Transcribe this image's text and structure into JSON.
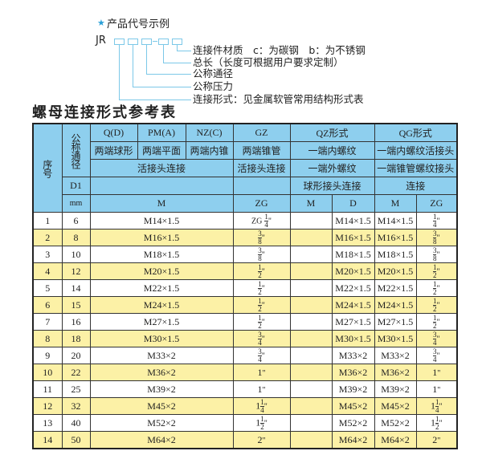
{
  "example": {
    "star_icon": "star-icon",
    "title": "产品代号示例",
    "prefix": "JR",
    "labels": [
      "连接件材质　c：为碳钢　b：为不锈钢",
      "总长（长度可根据用户要求定制）",
      "公称通径",
      "公称压力",
      "连接形式：见金属软管常用结构形式表"
    ]
  },
  "table_title": "螺母连接形式参考表",
  "colors": {
    "header": "#8ecfee",
    "stripe": "#fcf1a6",
    "accent": "#2aa0d8"
  },
  "header": {
    "seq": "序号",
    "dn": "公称通径",
    "d1": "D1",
    "mm": "mm",
    "q": "Q(D)",
    "pm": "PM(A)",
    "nz": "NZ(C)",
    "gz": "GZ",
    "qz": "QZ形式",
    "qg": "QG形式",
    "q_desc": "两端球形",
    "pm_desc": "两端平面",
    "nz_desc": "两端内锥",
    "gz_desc": "两端锥管",
    "qz_desc1": "一端内螺纹",
    "qg_desc1": "一端内螺纹活接头",
    "union": "活接头连接",
    "gz_union": "活接头连接",
    "qz_desc2": "一端外螺纹",
    "qg_desc2": "一端锥管螺纹接头",
    "qz_desc3": "球形接头连接",
    "qg_desc3": "连接",
    "m": "M",
    "zg": "ZG",
    "qz_m": "M",
    "qz_d": "D",
    "qg_m": "M",
    "qg_zg": "ZG"
  },
  "rows": [
    {
      "seq": "1",
      "dn": "6",
      "m": "M14×1.5",
      "zg": {
        "pre": "ZG",
        "w": "",
        "n": "1",
        "d": "4",
        "s": "\""
      },
      "qz_m": "",
      "qz_d": "M14×1.5",
      "qg_m": "M14×1.5",
      "qg_zg": {
        "pre": "",
        "w": "",
        "n": "1",
        "d": "4",
        "s": "\""
      }
    },
    {
      "seq": "2",
      "dn": "8",
      "m": "M16×1.5",
      "zg": {
        "pre": "",
        "w": "",
        "n": "3",
        "d": "8",
        "s": "\""
      },
      "qz_m": "",
      "qz_d": "M16×1.5",
      "qg_m": "M16×1.5",
      "qg_zg": {
        "pre": "",
        "w": "",
        "n": "3",
        "d": "8",
        "s": "\""
      }
    },
    {
      "seq": "3",
      "dn": "10",
      "m": "M18×1.5",
      "zg": {
        "pre": "",
        "w": "",
        "n": "3",
        "d": "8",
        "s": "\""
      },
      "qz_m": "",
      "qz_d": "M18×1.5",
      "qg_m": "M18×1.5",
      "qg_zg": {
        "pre": "",
        "w": "",
        "n": "3",
        "d": "8",
        "s": "\""
      }
    },
    {
      "seq": "4",
      "dn": "12",
      "m": "M20×1.5",
      "zg": {
        "pre": "",
        "w": "",
        "n": "1",
        "d": "2",
        "s": "\""
      },
      "qz_m": "",
      "qz_d": "M20×1.5",
      "qg_m": "M20×1.5",
      "qg_zg": {
        "pre": "",
        "w": "",
        "n": "1",
        "d": "2",
        "s": "\""
      }
    },
    {
      "seq": "5",
      "dn": "14",
      "m": "M22×1.5",
      "zg": {
        "pre": "",
        "w": "",
        "n": "1",
        "d": "2",
        "s": "\""
      },
      "qz_m": "",
      "qz_d": "M22×1.5",
      "qg_m": "M22×1.5",
      "qg_zg": {
        "pre": "",
        "w": "",
        "n": "1",
        "d": "2",
        "s": "\""
      }
    },
    {
      "seq": "6",
      "dn": "15",
      "m": "M24×1.5",
      "zg": {
        "pre": "",
        "w": "",
        "n": "1",
        "d": "2",
        "s": "\""
      },
      "qz_m": "",
      "qz_d": "M24×1.5",
      "qg_m": "M24×1.5",
      "qg_zg": {
        "pre": "",
        "w": "",
        "n": "1",
        "d": "2",
        "s": "\""
      }
    },
    {
      "seq": "7",
      "dn": "16",
      "m": "M27×1.5",
      "zg": {
        "pre": "",
        "w": "",
        "n": "1",
        "d": "2",
        "s": "\""
      },
      "qz_m": "",
      "qz_d": "M27×1.5",
      "qg_m": "M27×1.5",
      "qg_zg": {
        "pre": "",
        "w": "",
        "n": "1",
        "d": "2",
        "s": "\""
      }
    },
    {
      "seq": "8",
      "dn": "18",
      "m": "M30×1.5",
      "zg": {
        "pre": "",
        "w": "",
        "n": "3",
        "d": "4",
        "s": "\""
      },
      "qz_m": "",
      "qz_d": "M30×1.5",
      "qg_m": "M30×1.5",
      "qg_zg": {
        "pre": "",
        "w": "",
        "n": "3",
        "d": "4",
        "s": "\""
      }
    },
    {
      "seq": "9",
      "dn": "20",
      "m": "M33×2",
      "zg": {
        "pre": "",
        "w": "",
        "n": "3",
        "d": "4",
        "s": "\""
      },
      "qz_m": "",
      "qz_d": "M33×2",
      "qg_m": "M33×2",
      "qg_zg": {
        "pre": "",
        "w": "",
        "n": "3",
        "d": "4",
        "s": "\""
      }
    },
    {
      "seq": "10",
      "dn": "22",
      "m": "M36×2",
      "zg": {
        "pre": "",
        "w": "1",
        "n": "",
        "d": "",
        "s": "\""
      },
      "qz_m": "",
      "qz_d": "M36×2",
      "qg_m": "M36×2",
      "qg_zg": {
        "pre": "",
        "w": "1",
        "n": "",
        "d": "",
        "s": "\""
      }
    },
    {
      "seq": "11",
      "dn": "25",
      "m": "M39×2",
      "zg": {
        "pre": "",
        "w": "1",
        "n": "",
        "d": "",
        "s": "\""
      },
      "qz_m": "",
      "qz_d": "M39×2",
      "qg_m": "M39×2",
      "qg_zg": {
        "pre": "",
        "w": "1",
        "n": "",
        "d": "",
        "s": "\""
      }
    },
    {
      "seq": "12",
      "dn": "32",
      "m": "M45×2",
      "zg": {
        "pre": "",
        "w": "1",
        "n": "1",
        "d": "4",
        "s": "\""
      },
      "qz_m": "",
      "qz_d": "M45×2",
      "qg_m": "M45×2",
      "qg_zg": {
        "pre": "",
        "w": "1",
        "n": "1",
        "d": "4",
        "s": "\""
      }
    },
    {
      "seq": "13",
      "dn": "40",
      "m": "M52×2",
      "zg": {
        "pre": "",
        "w": "1",
        "n": "1",
        "d": "2",
        "s": "\""
      },
      "qz_m": "",
      "qz_d": "M52×2",
      "qg_m": "M52×2",
      "qg_zg": {
        "pre": "",
        "w": "1",
        "n": "1",
        "d": "2",
        "s": "\""
      }
    },
    {
      "seq": "14",
      "dn": "50",
      "m": "M64×2",
      "zg": {
        "pre": "",
        "w": "2",
        "n": "",
        "d": "",
        "s": "\""
      },
      "qz_m": "",
      "qz_d": "M64×2",
      "qg_m": "M64×2",
      "qg_zg": {
        "pre": "",
        "w": "2",
        "n": "",
        "d": "",
        "s": "\""
      }
    }
  ]
}
